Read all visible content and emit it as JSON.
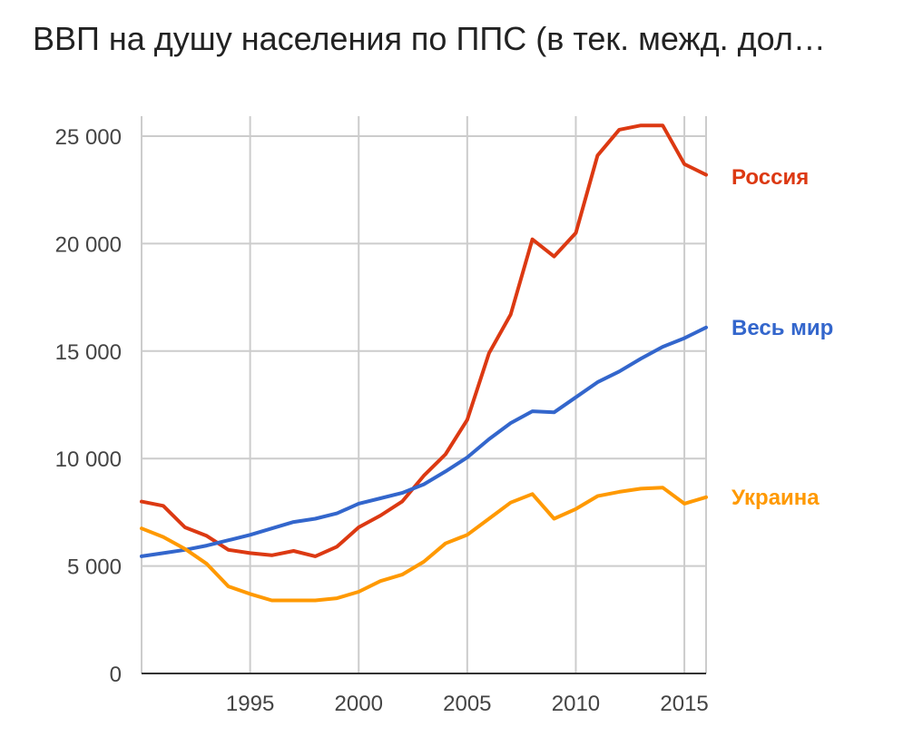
{
  "chart_data": {
    "type": "line",
    "title": "ВВП на душу населения по ППС (в тек. межд. дол…",
    "xlabel": "",
    "ylabel": "",
    "xlim": [
      1990,
      2016
    ],
    "ylim": [
      0,
      26000
    ],
    "x_ticks": [
      1995,
      2000,
      2005,
      2010,
      2015
    ],
    "y_ticks": [
      0,
      5000,
      10000,
      15000,
      20000,
      25000
    ],
    "y_tick_labels": [
      "0",
      "5 000",
      "10 000",
      "15 000",
      "20 000",
      "25 000"
    ],
    "grid": true,
    "legend": "inline-right",
    "x": [
      1990,
      1991,
      1992,
      1993,
      1994,
      1995,
      1996,
      1997,
      1998,
      1999,
      2000,
      2001,
      2002,
      2003,
      2004,
      2005,
      2006,
      2007,
      2008,
      2009,
      2010,
      2011,
      2012,
      2013,
      2014,
      2015,
      2016
    ],
    "series": [
      {
        "name": "Россия",
        "color": "#dc3912",
        "values": [
          8000,
          7800,
          6800,
          6400,
          5750,
          5600,
          5500,
          5700,
          5450,
          5900,
          6800,
          7350,
          8000,
          9200,
          10200,
          11800,
          14900,
          16700,
          20200,
          19400,
          20500,
          24100,
          25300,
          25500,
          25500,
          23700,
          23200
        ]
      },
      {
        "name": "Весь мир",
        "color": "#3366cc",
        "values": [
          5450,
          5600,
          5750,
          5950,
          6200,
          6450,
          6750,
          7050,
          7200,
          7450,
          7900,
          8150,
          8400,
          8800,
          9400,
          10050,
          10900,
          11650,
          12200,
          12150,
          12850,
          13550,
          14050,
          14650,
          15200,
          15600,
          16100
        ]
      },
      {
        "name": "Украина",
        "color": "#ff9900",
        "values": [
          6750,
          6350,
          5800,
          5100,
          4050,
          3700,
          3400,
          3400,
          3400,
          3500,
          3800,
          4300,
          4600,
          5200,
          6050,
          6450,
          7200,
          7950,
          8350,
          7200,
          7650,
          8250,
          8450,
          8600,
          8650,
          7900,
          8200
        ]
      }
    ]
  }
}
